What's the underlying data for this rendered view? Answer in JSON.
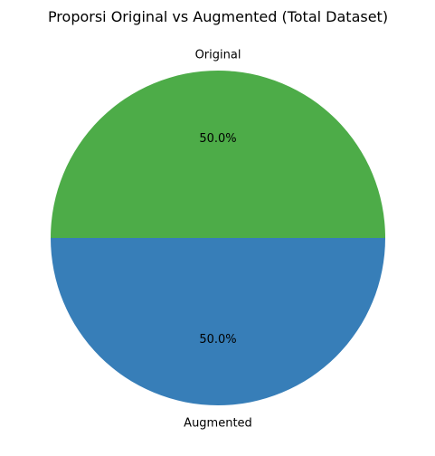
{
  "chart_data": {
    "type": "pie",
    "title": "Proporsi Original vs Augmented (Total Dataset)",
    "slices": [
      {
        "label": "Original",
        "value": 50.0,
        "percent_label": "50.0%",
        "color": "#4dac48"
      },
      {
        "label": "Augmented",
        "value": 50.0,
        "percent_label": "50.0%",
        "color": "#377eb8"
      }
    ],
    "start_angle": "right",
    "direction": "counter-clockwise"
  }
}
